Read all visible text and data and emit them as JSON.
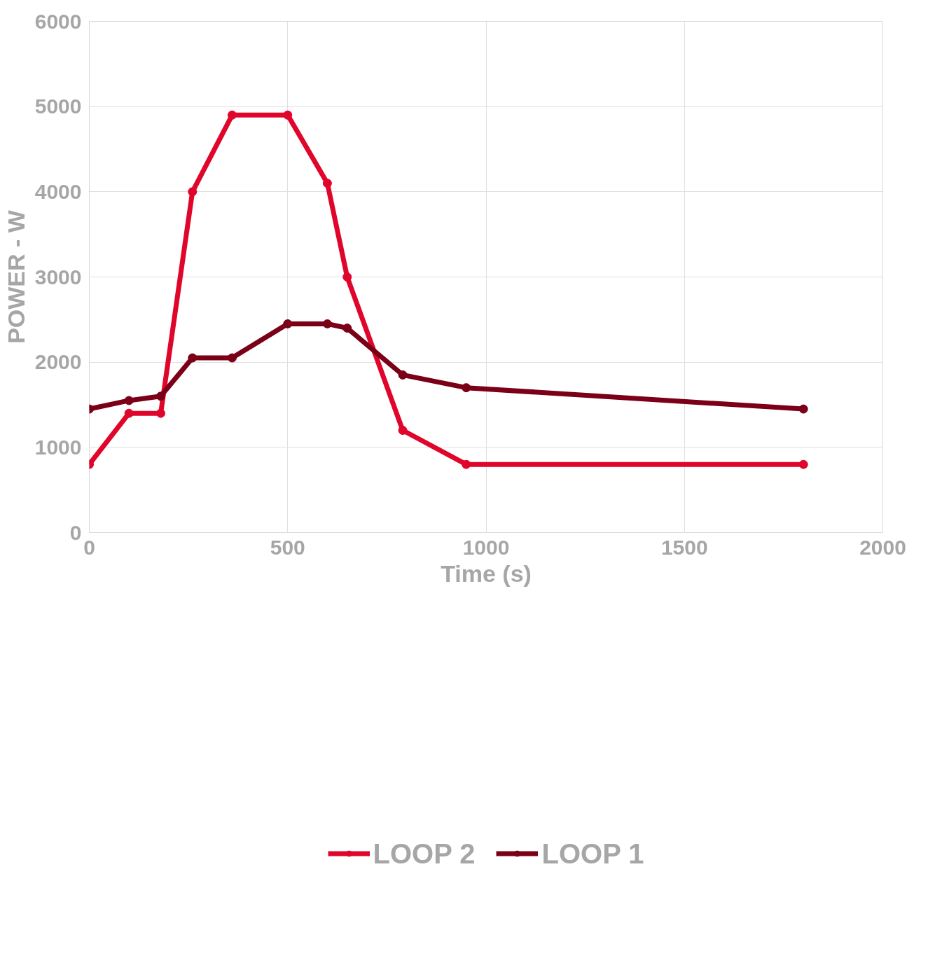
{
  "chart_data": {
    "type": "line",
    "xlabel": "Time (s)",
    "ylabel": "POWER - W",
    "xlim": [
      0,
      2000
    ],
    "xticks": [
      0,
      500,
      1000,
      1500,
      2000
    ],
    "ylim": [
      0,
      6000
    ],
    "yticks": [
      0,
      1000,
      2000,
      3000,
      4000,
      5000,
      6000
    ],
    "grid": true,
    "legend": "bottom",
    "marker": "circle",
    "line_style": "solid",
    "series": [
      {
        "name": "LOOP 2",
        "color": "#e0062b",
        "x": [
          0,
          100,
          180,
          260,
          360,
          500,
          600,
          650,
          790,
          950,
          1800
        ],
        "values": [
          800,
          1400,
          1400,
          4000,
          4900,
          4900,
          4100,
          3000,
          1200,
          800,
          800
        ]
      },
      {
        "name": "LOOP 1",
        "color": "#7b0017",
        "x": [
          0,
          100,
          180,
          260,
          360,
          500,
          600,
          650,
          790,
          950,
          1800
        ],
        "values": [
          1450,
          1550,
          1600,
          2050,
          2050,
          2450,
          2450,
          2400,
          1850,
          1700,
          1450
        ]
      }
    ]
  }
}
